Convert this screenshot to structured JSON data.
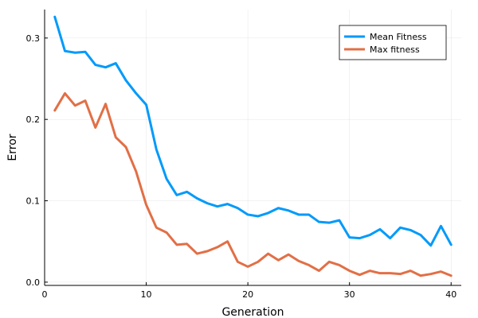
{
  "chart_data": {
    "type": "line",
    "xlabel": "Generation",
    "ylabel": "Error",
    "xlim": [
      0,
      41
    ],
    "ylim": [
      -0.004,
      0.335
    ],
    "xticks": [
      0,
      10,
      20,
      30,
      40
    ],
    "yticks": [
      0.0,
      0.1,
      0.2,
      0.3
    ],
    "ytick_labels": [
      "0.0",
      "0.1",
      "0.2",
      "0.3"
    ],
    "grid": true,
    "legend_position": "top-right",
    "x": [
      1,
      2,
      3,
      4,
      5,
      6,
      7,
      8,
      9,
      10,
      11,
      12,
      13,
      14,
      15,
      16,
      17,
      18,
      19,
      20,
      21,
      22,
      23,
      24,
      25,
      26,
      27,
      28,
      29,
      30,
      31,
      32,
      33,
      34,
      35,
      36,
      37,
      38,
      39,
      40
    ],
    "series": [
      {
        "name": "Mean Fitness",
        "color": "#009AFA",
        "values": [
          0.326,
          0.284,
          0.282,
          0.283,
          0.267,
          0.264,
          0.269,
          0.248,
          0.232,
          0.218,
          0.163,
          0.127,
          0.107,
          0.111,
          0.103,
          0.097,
          0.093,
          0.096,
          0.091,
          0.083,
          0.081,
          0.085,
          0.091,
          0.088,
          0.083,
          0.083,
          0.074,
          0.073,
          0.076,
          0.055,
          0.054,
          0.058,
          0.065,
          0.054,
          0.067,
          0.064,
          0.058,
          0.045,
          0.069,
          0.046
        ]
      },
      {
        "name": "Max fitness",
        "color": "#E26F46",
        "values": [
          0.211,
          0.232,
          0.217,
          0.223,
          0.19,
          0.219,
          0.178,
          0.166,
          0.136,
          0.095,
          0.067,
          0.061,
          0.046,
          0.047,
          0.035,
          0.038,
          0.043,
          0.05,
          0.025,
          0.019,
          0.025,
          0.035,
          0.027,
          0.034,
          0.026,
          0.021,
          0.014,
          0.025,
          0.021,
          0.014,
          0.009,
          0.014,
          0.011,
          0.011,
          0.01,
          0.014,
          0.008,
          0.01,
          0.013,
          0.008
        ]
      }
    ]
  }
}
